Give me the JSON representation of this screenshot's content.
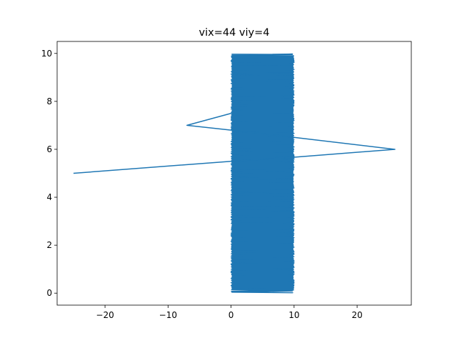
{
  "chart_data": {
    "type": "line",
    "title": "vix=44 viy=4",
    "xlabel": "",
    "ylabel": "",
    "xlim": [
      -27.6,
      28.6
    ],
    "ylim": [
      -0.5,
      10.5
    ],
    "xticks": [
      -20,
      -10,
      0,
      10,
      20
    ],
    "yticks": [
      0,
      2,
      4,
      6,
      8,
      10
    ],
    "xtick_labels": [
      "−20",
      "−10",
      "0",
      "10",
      "20"
    ],
    "ytick_labels": [
      "0",
      "2",
      "4",
      "6",
      "8",
      "10"
    ],
    "grid": false,
    "legend": "none",
    "colors": {
      "line": "#1f77b4"
    },
    "series": [
      {
        "line_path": [
          [
            -25,
            5.0
          ],
          [
            0,
            5.5
          ],
          [
            10,
            5.67
          ],
          [
            26,
            6.0
          ],
          [
            10,
            6.5
          ],
          [
            0,
            6.8
          ],
          [
            -7,
            7.0
          ],
          [
            0,
            7.5
          ]
        ],
        "dense_band": {
          "x_range": [
            0,
            10
          ],
          "y_range": [
            0.05,
            9.98
          ],
          "description_hidden": true
        }
      }
    ]
  }
}
